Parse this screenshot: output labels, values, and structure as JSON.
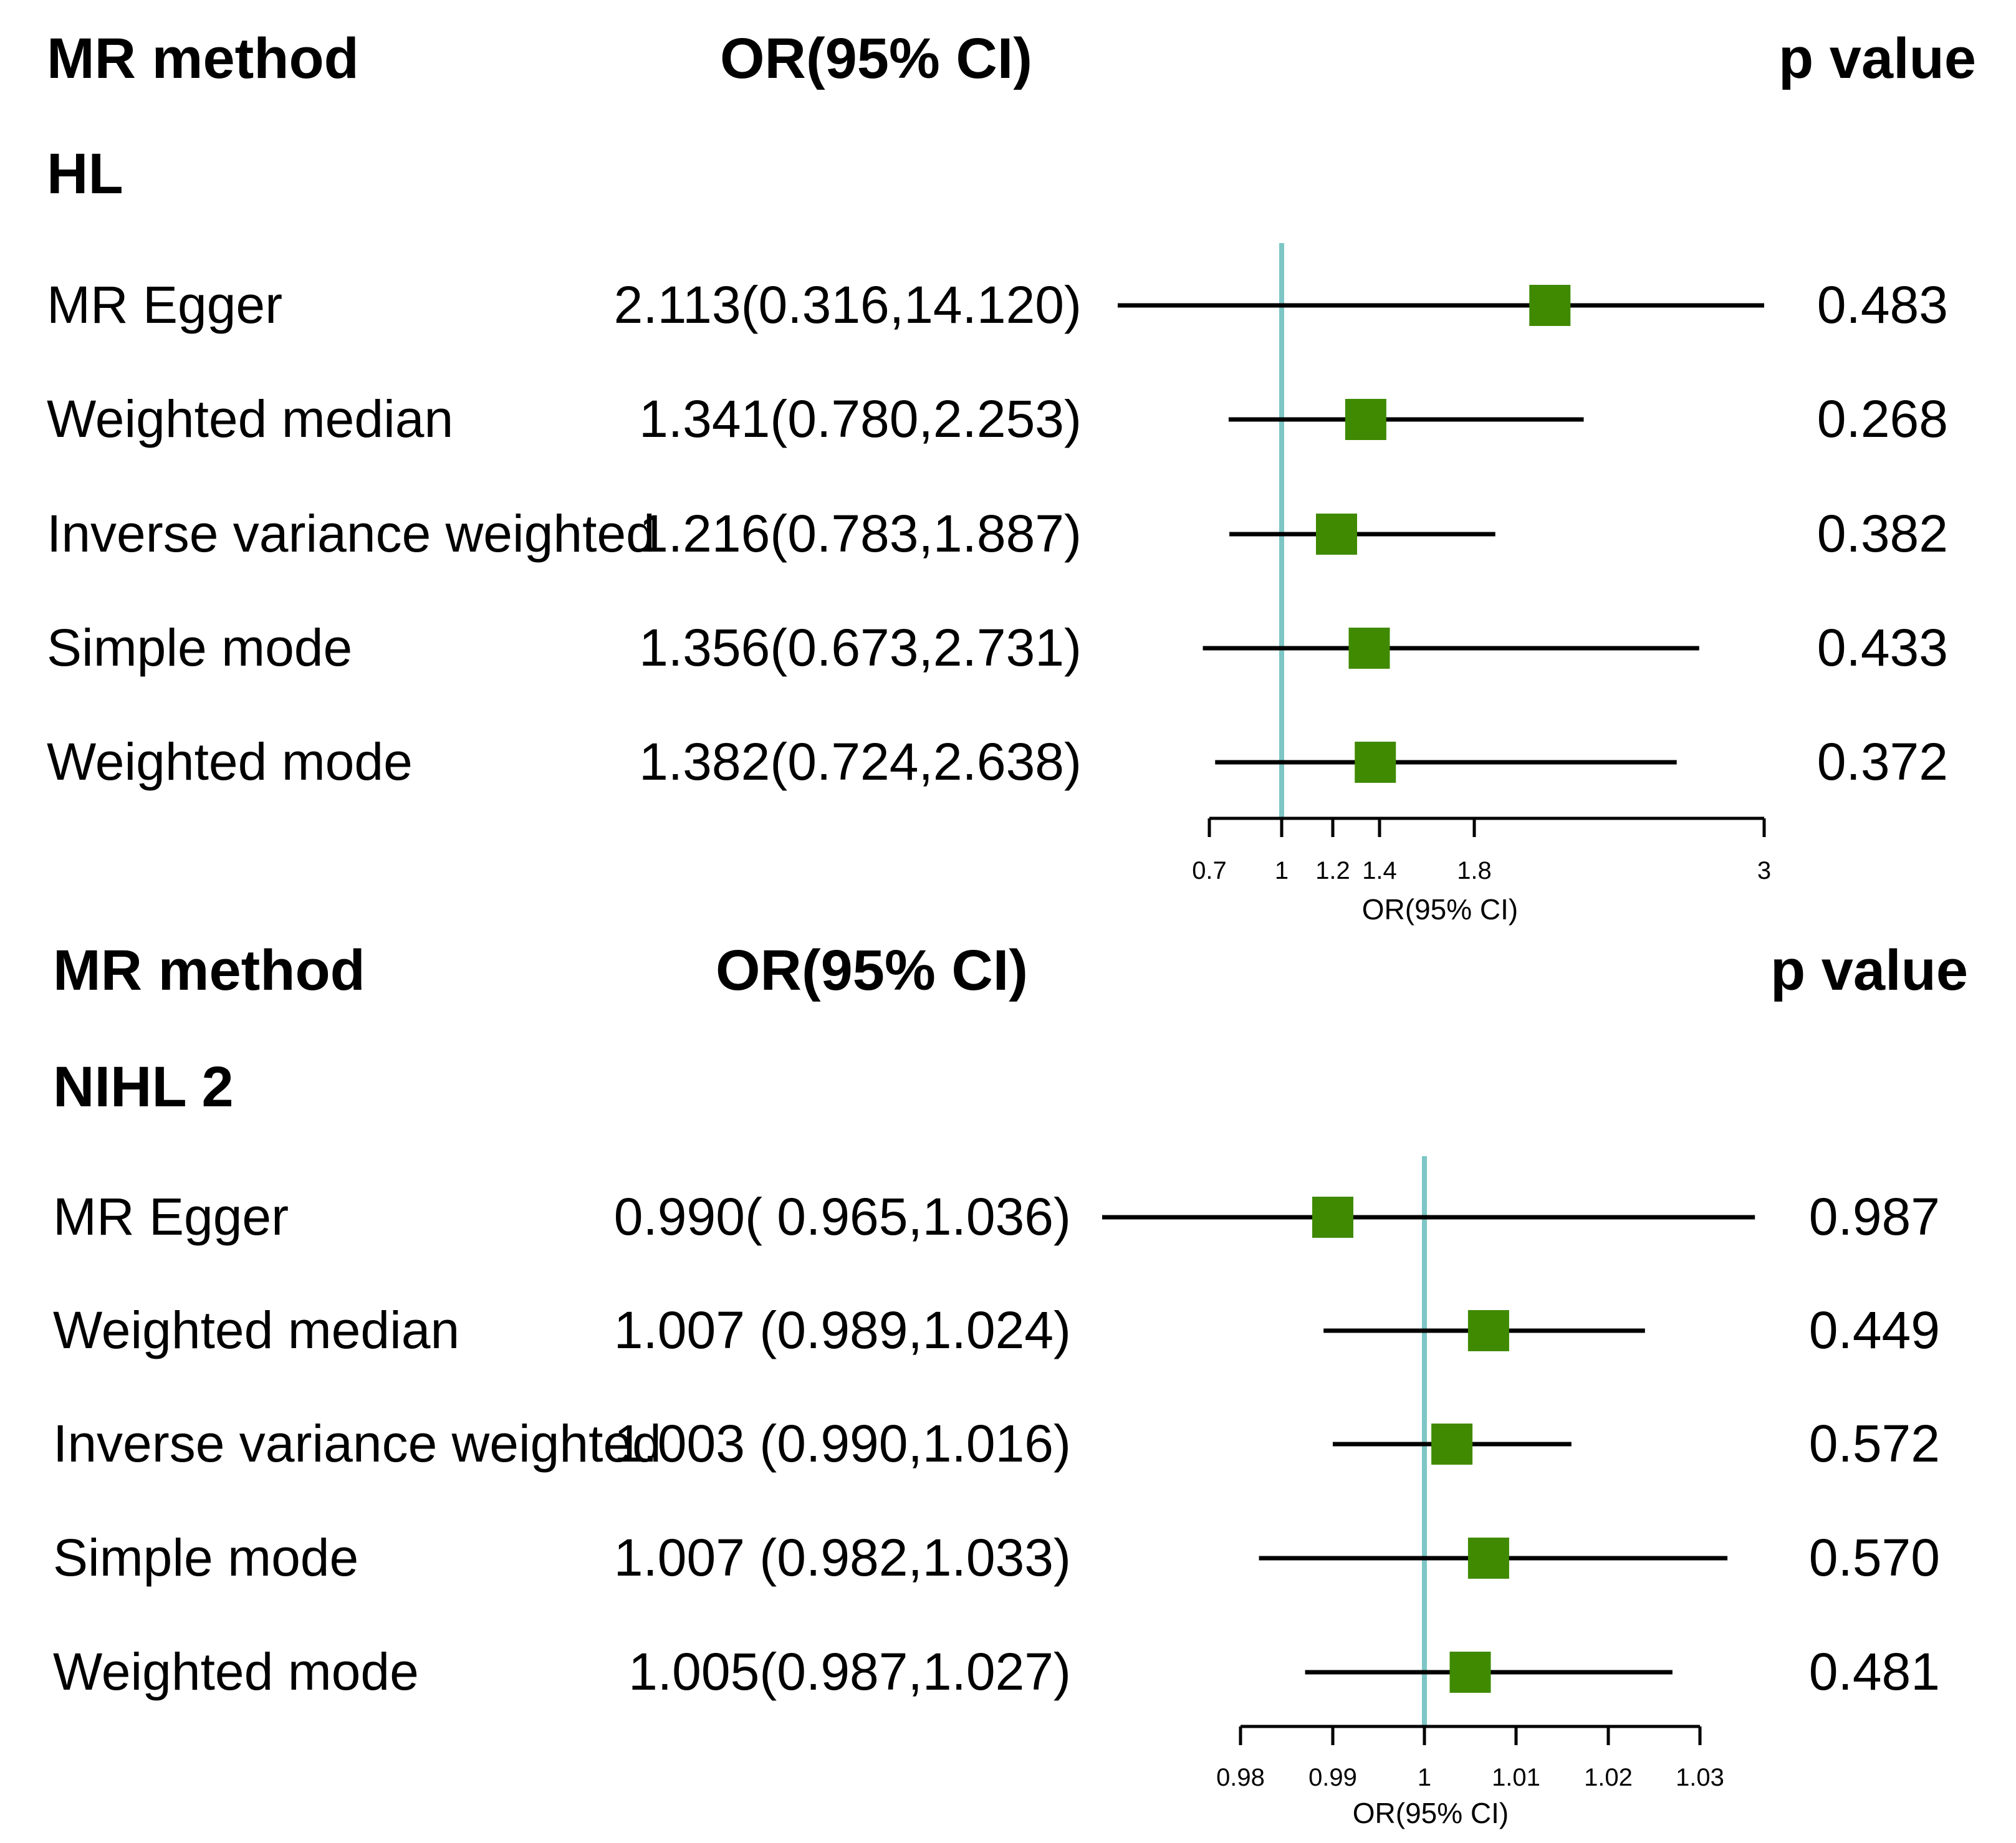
{
  "colors": {
    "marker": "#3f8a00",
    "refline": "#7ec6c6",
    "line": "#000000"
  },
  "chart_data": [
    {
      "type": "forest",
      "header": {
        "method": "MR method",
        "estimate": "OR(95% CI)",
        "pvalue": "p value"
      },
      "group_label": "HL",
      "xlabel": "OR(95% CI)",
      "xlim": [
        0.7,
        3
      ],
      "ref_value": 1,
      "x_ticks": [
        0.7,
        1,
        1.2,
        1.4,
        1.8,
        3
      ],
      "x_tick_labels": [
        "0.7",
        "1",
        "1.2",
        "1.4",
        "1.8",
        "3"
      ],
      "rows": [
        {
          "method": "MR Egger",
          "or": 2.113,
          "lower": 0.316,
          "upper": 14.12,
          "or_text": "2.113(0.316,14.120)",
          "p": "0.483"
        },
        {
          "method": "Weighted median",
          "or": 1.341,
          "lower": 0.78,
          "upper": 2.253,
          "or_text": "1.341(0.780,2.253)",
          "p": "0.268"
        },
        {
          "method": "Inverse variance weighted",
          "or": 1.216,
          "lower": 0.783,
          "upper": 1.887,
          "or_text": "1.216(0.783,1.887)",
          "p": "0.382"
        },
        {
          "method": "Simple mode",
          "or": 1.356,
          "lower": 0.673,
          "upper": 2.731,
          "or_text": "1.356(0.673,2.731)",
          "p": "0.433"
        },
        {
          "method": "Weighted mode",
          "or": 1.382,
          "lower": 0.724,
          "upper": 2.638,
          "or_text": "1.382(0.724,2.638)",
          "p": "0.372"
        }
      ]
    },
    {
      "type": "forest",
      "header": {
        "method": "MR method",
        "estimate": "OR(95% CI)",
        "pvalue": "p value"
      },
      "group_label": "NIHL 2",
      "xlabel": "OR(95% CI)",
      "xlim": [
        0.98,
        1.03
      ],
      "ref_value": 1,
      "x_ticks": [
        0.98,
        0.99,
        1,
        1.01,
        1.02,
        1.03
      ],
      "x_tick_labels": [
        "0.98",
        "0.99",
        "1",
        "1.01",
        "1.02",
        "1.03"
      ],
      "rows": [
        {
          "method": "MR Egger",
          "or": 0.99,
          "lower": 0.965,
          "upper": 1.036,
          "or_text": "0.990( 0.965,1.036)",
          "p": "0.987"
        },
        {
          "method": "Weighted median",
          "or": 1.007,
          "lower": 0.989,
          "upper": 1.024,
          "or_text": "1.007 (0.989,1.024)",
          "p": "0.449"
        },
        {
          "method": "Inverse variance weighted",
          "or": 1.003,
          "lower": 0.99,
          "upper": 1.016,
          "or_text": "1.003 (0.990,1.016)",
          "p": "0.572"
        },
        {
          "method": "Simple mode",
          "or": 1.007,
          "lower": 0.982,
          "upper": 1.033,
          "or_text": "1.007 (0.982,1.033)",
          "p": "0.570"
        },
        {
          "method": "Weighted mode",
          "or": 1.005,
          "lower": 0.987,
          "upper": 1.027,
          "or_text": "1.005(0.987,1.027)",
          "p": "0.481"
        }
      ]
    }
  ]
}
